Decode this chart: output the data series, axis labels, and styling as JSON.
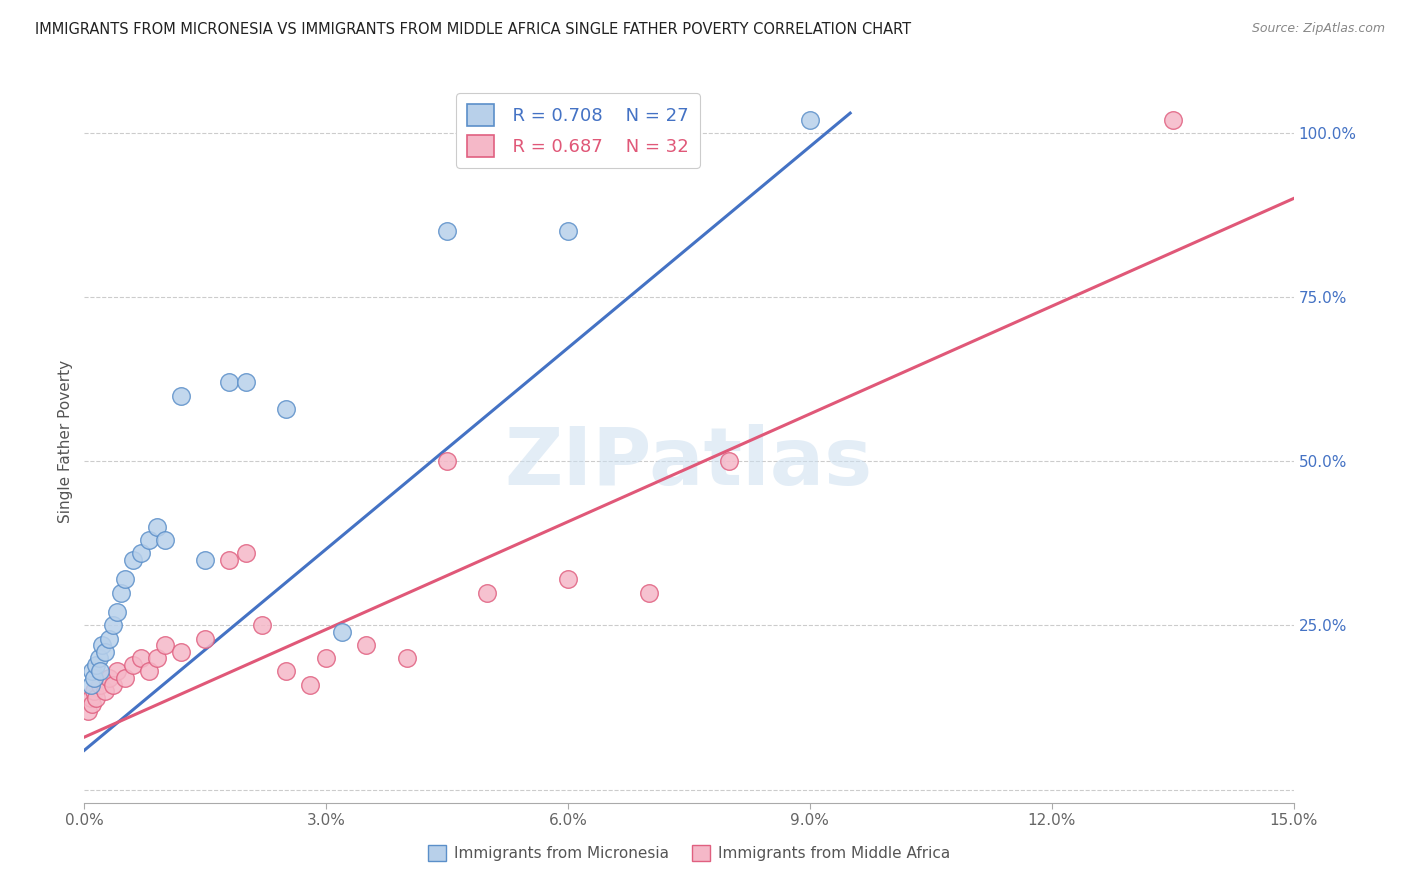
{
  "title": "IMMIGRANTS FROM MICRONESIA VS IMMIGRANTS FROM MIDDLE AFRICA SINGLE FATHER POVERTY CORRELATION CHART",
  "source": "Source: ZipAtlas.com",
  "ylabel": "Single Father Poverty",
  "xlim": [
    0.0,
    0.15
  ],
  "ylim": [
    -0.02,
    1.08
  ],
  "xticks": [
    0.0,
    0.03,
    0.06,
    0.09,
    0.12,
    0.15
  ],
  "xticklabels": [
    "0.0%",
    "3.0%",
    "6.0%",
    "9.0%",
    "12.0%",
    "15.0%"
  ],
  "yticks_right": [
    0.25,
    0.5,
    0.75,
    1.0
  ],
  "yticklabels_right": [
    "25.0%",
    "50.0%",
    "75.0%",
    "100.0%"
  ],
  "watermark": "ZIPatlas",
  "legend_r1": "R = 0.708",
  "legend_n1": "N = 27",
  "legend_r2": "R = 0.687",
  "legend_n2": "N = 32",
  "color_micronesia_fill": "#b8d0ea",
  "color_micronesia_edge": "#5b8fc9",
  "color_middle_africa_fill": "#f5b8c8",
  "color_middle_africa_edge": "#e06080",
  "color_line_micronesia": "#4472c4",
  "color_line_middle_africa": "#e05878",
  "micronesia_x": [
    0.0008,
    0.001,
    0.0012,
    0.0015,
    0.0018,
    0.002,
    0.0022,
    0.0025,
    0.003,
    0.0035,
    0.004,
    0.0045,
    0.005,
    0.006,
    0.007,
    0.008,
    0.009,
    0.01,
    0.012,
    0.015,
    0.018,
    0.02,
    0.025,
    0.032,
    0.045,
    0.06,
    0.09
  ],
  "micronesia_y": [
    0.16,
    0.18,
    0.17,
    0.19,
    0.2,
    0.18,
    0.22,
    0.21,
    0.23,
    0.25,
    0.27,
    0.3,
    0.32,
    0.35,
    0.36,
    0.38,
    0.4,
    0.38,
    0.6,
    0.35,
    0.62,
    0.62,
    0.58,
    0.24,
    0.85,
    0.85,
    1.02
  ],
  "middle_africa_x": [
    0.0005,
    0.0008,
    0.001,
    0.0012,
    0.0015,
    0.002,
    0.0025,
    0.003,
    0.0035,
    0.004,
    0.005,
    0.006,
    0.007,
    0.008,
    0.009,
    0.01,
    0.012,
    0.015,
    0.018,
    0.02,
    0.022,
    0.025,
    0.028,
    0.03,
    0.035,
    0.04,
    0.045,
    0.05,
    0.06,
    0.07,
    0.08,
    0.135
  ],
  "middle_africa_y": [
    0.12,
    0.14,
    0.13,
    0.15,
    0.14,
    0.16,
    0.15,
    0.17,
    0.16,
    0.18,
    0.17,
    0.19,
    0.2,
    0.18,
    0.2,
    0.22,
    0.21,
    0.23,
    0.35,
    0.36,
    0.25,
    0.18,
    0.16,
    0.2,
    0.22,
    0.2,
    0.5,
    0.3,
    0.32,
    0.3,
    0.5,
    1.02
  ],
  "micronesia_trend_x": [
    0.0,
    0.095
  ],
  "micronesia_trend_y": [
    0.06,
    1.03
  ],
  "middle_africa_trend_x": [
    0.0,
    0.15
  ],
  "middle_africa_trend_y": [
    0.08,
    0.9
  ]
}
